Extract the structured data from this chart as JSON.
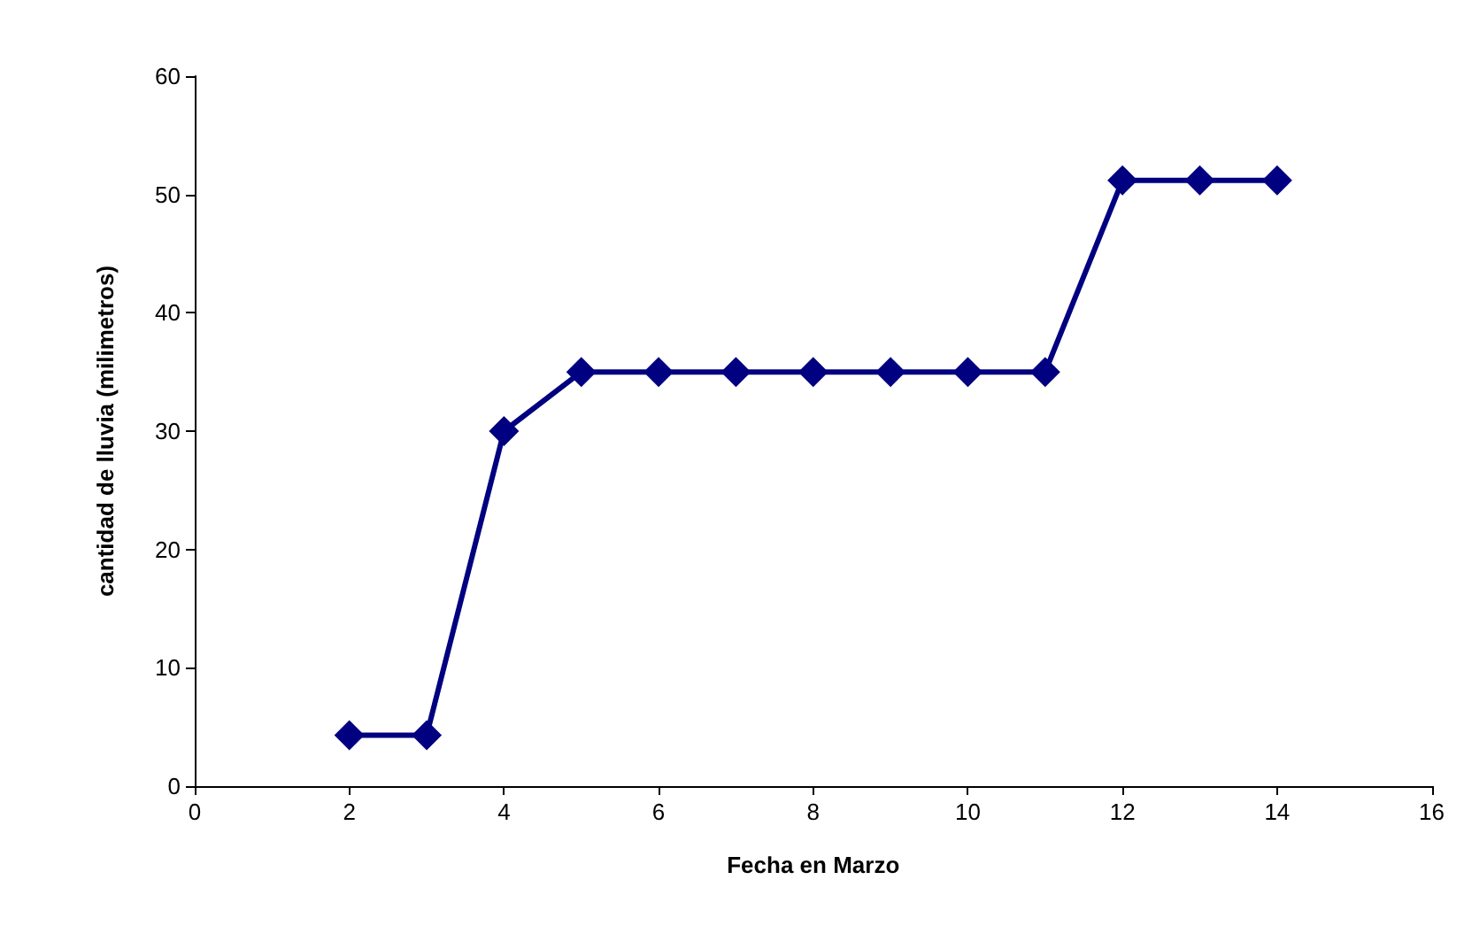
{
  "chart_data": {
    "type": "line",
    "xlabel": "Fecha en Marzo",
    "ylabel": "cantidad de lluvia (milimetros)",
    "x": [
      2,
      3,
      4,
      5,
      6,
      7,
      8,
      9,
      10,
      11,
      12,
      13,
      14
    ],
    "series": [
      {
        "color": "#000080",
        "values": [
          4.3,
          4.3,
          30,
          35,
          35,
          35,
          35,
          35,
          35,
          35,
          51.2,
          51.2,
          51.2
        ]
      }
    ],
    "xlim": [
      0,
      16
    ],
    "xticks": [
      0,
      2,
      4,
      6,
      8,
      10,
      12,
      14,
      16
    ],
    "ylim": [
      0,
      60
    ],
    "yticks": [
      0,
      10,
      20,
      30,
      40,
      50,
      60
    ],
    "grid": false,
    "marker": "diamond",
    "line_style": "solid"
  }
}
